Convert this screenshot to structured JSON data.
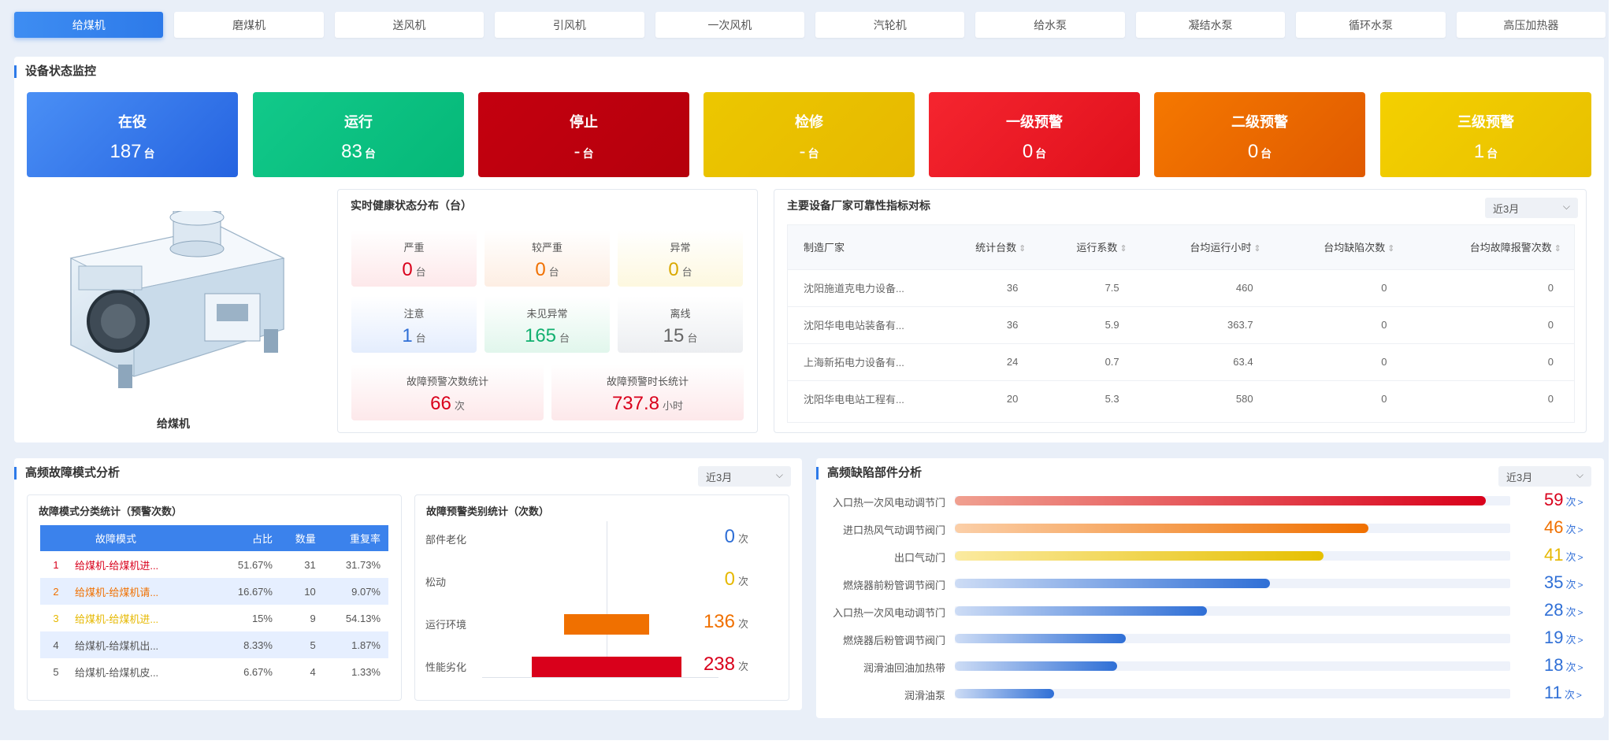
{
  "tabs": [
    "给煤机",
    "磨煤机",
    "送风机",
    "引风机",
    "一次风机",
    "汽轮机",
    "给水泵",
    "凝结水泵",
    "循环水泵",
    "高压加热器"
  ],
  "colors": {
    "primary": "#2d7ae9",
    "red": "#d9001b",
    "orange": "#f07000",
    "yellow": "#e6b800",
    "blue": "#2f6fd6"
  },
  "status": {
    "title": "设备状态监控",
    "unit": "台",
    "cards": [
      {
        "label": "在役",
        "value": "187"
      },
      {
        "label": "运行",
        "value": "83"
      },
      {
        "label": "停止",
        "value": "-"
      },
      {
        "label": "检修",
        "value": "-"
      },
      {
        "label": "一级预警",
        "value": "0"
      },
      {
        "label": "二级预警",
        "value": "0"
      },
      {
        "label": "三级预警",
        "value": "1"
      }
    ]
  },
  "equipment": {
    "name": "给煤机",
    "icon": "coal-feeder-machine-image"
  },
  "health": {
    "title": "实时健康状态分布（台）",
    "unit": "台",
    "cells": [
      {
        "label": "严重",
        "value": "0"
      },
      {
        "label": "较严重",
        "value": "0"
      },
      {
        "label": "异常",
        "value": "0"
      },
      {
        "label": "注意",
        "value": "1"
      },
      {
        "label": "未见异常",
        "value": "165"
      },
      {
        "label": "离线",
        "value": "15"
      }
    ],
    "stats": [
      {
        "label": "故障预警次数统计",
        "value": "66",
        "unit": "次"
      },
      {
        "label": "故障预警时长统计",
        "value": "737.8",
        "unit": "小时"
      }
    ]
  },
  "manufacturers": {
    "title": "主要设备厂家可靠性指标对标",
    "period": "近3月",
    "headers": [
      "制造厂家",
      "统计台数",
      "运行系数",
      "台均运行小时",
      "台均缺陷次数",
      "台均故障报警次数"
    ],
    "rows": [
      [
        "沈阳施道克电力设备...",
        "36",
        "7.5",
        "460",
        "0",
        "0"
      ],
      [
        "沈阳华电电站装备有...",
        "36",
        "5.9",
        "363.7",
        "0",
        "0"
      ],
      [
        "上海新拓电力设备有...",
        "24",
        "0.7",
        "63.4",
        "0",
        "0"
      ],
      [
        "沈阳华电电站工程有...",
        "20",
        "5.3",
        "580",
        "0",
        "0"
      ]
    ]
  },
  "fault": {
    "title": "高频故障模式分析",
    "period": "近3月",
    "table_title": "故障模式分类统计（预警次数）",
    "headers": [
      "",
      "故障模式",
      "占比",
      "数量",
      "重复率"
    ],
    "rows": [
      [
        "1",
        "给煤机-给煤机进...",
        "51.67%",
        "31",
        "31.73%"
      ],
      [
        "2",
        "给煤机-给煤机请...",
        "16.67%",
        "10",
        "9.07%"
      ],
      [
        "3",
        "给煤机-给煤机进...",
        "15%",
        "9",
        "54.13%"
      ],
      [
        "4",
        "给煤机-给煤机出...",
        "8.33%",
        "5",
        "1.87%"
      ],
      [
        "5",
        "给煤机-给煤机皮...",
        "6.67%",
        "4",
        "1.33%"
      ]
    ],
    "row_colors": [
      "#d9001b",
      "#f07000",
      "#e6b800",
      "#555555",
      "#555555"
    ]
  },
  "chart_data": [
    {
      "type": "bar",
      "title": "故障预警类别统计（次数）",
      "unit": "次",
      "categories": [
        "部件老化",
        "松动",
        "运行环境",
        "性能劣化"
      ],
      "values": [
        0,
        0,
        136,
        238
      ],
      "colors": [
        "#2f6fd6",
        "#e6b800",
        "#f07000",
        "#d9001b"
      ]
    },
    {
      "type": "bar",
      "title": "高频缺陷部件分析",
      "period": "近3月",
      "unit": "次",
      "categories": [
        "入口热一次风电动调节门",
        "进口热风气动调节阀门",
        "出口气动门",
        "燃烧器前粉管调节阀门",
        "入口热一次风电动调节门",
        "燃烧器后粉管调节阀门",
        "润滑油回油加热带",
        "润滑油泵"
      ],
      "values": [
        59,
        46,
        41,
        35,
        28,
        19,
        18,
        11
      ],
      "colors": [
        "#d9001b",
        "#f07000",
        "#e6b800",
        "#2f6fd6",
        "#2f6fd6",
        "#2f6fd6",
        "#2f6fd6",
        "#2f6fd6"
      ]
    }
  ]
}
